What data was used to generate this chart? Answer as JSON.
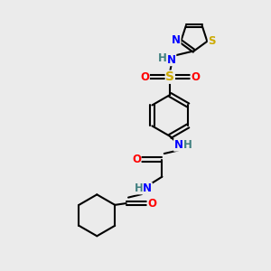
{
  "bg_color": "#ebebeb",
  "bond_color": "#000000",
  "bond_width": 1.5,
  "atom_colors": {
    "N": "#0000ff",
    "O": "#ff0000",
    "S_sulfo": "#ccaa00",
    "S_thio": "#ccaa00",
    "H": "#408080",
    "C": "#000000"
  },
  "font_size_atom": 8.5,
  "font_size_h": 7.5,
  "figsize": [
    3.0,
    3.0
  ],
  "dpi": 100
}
